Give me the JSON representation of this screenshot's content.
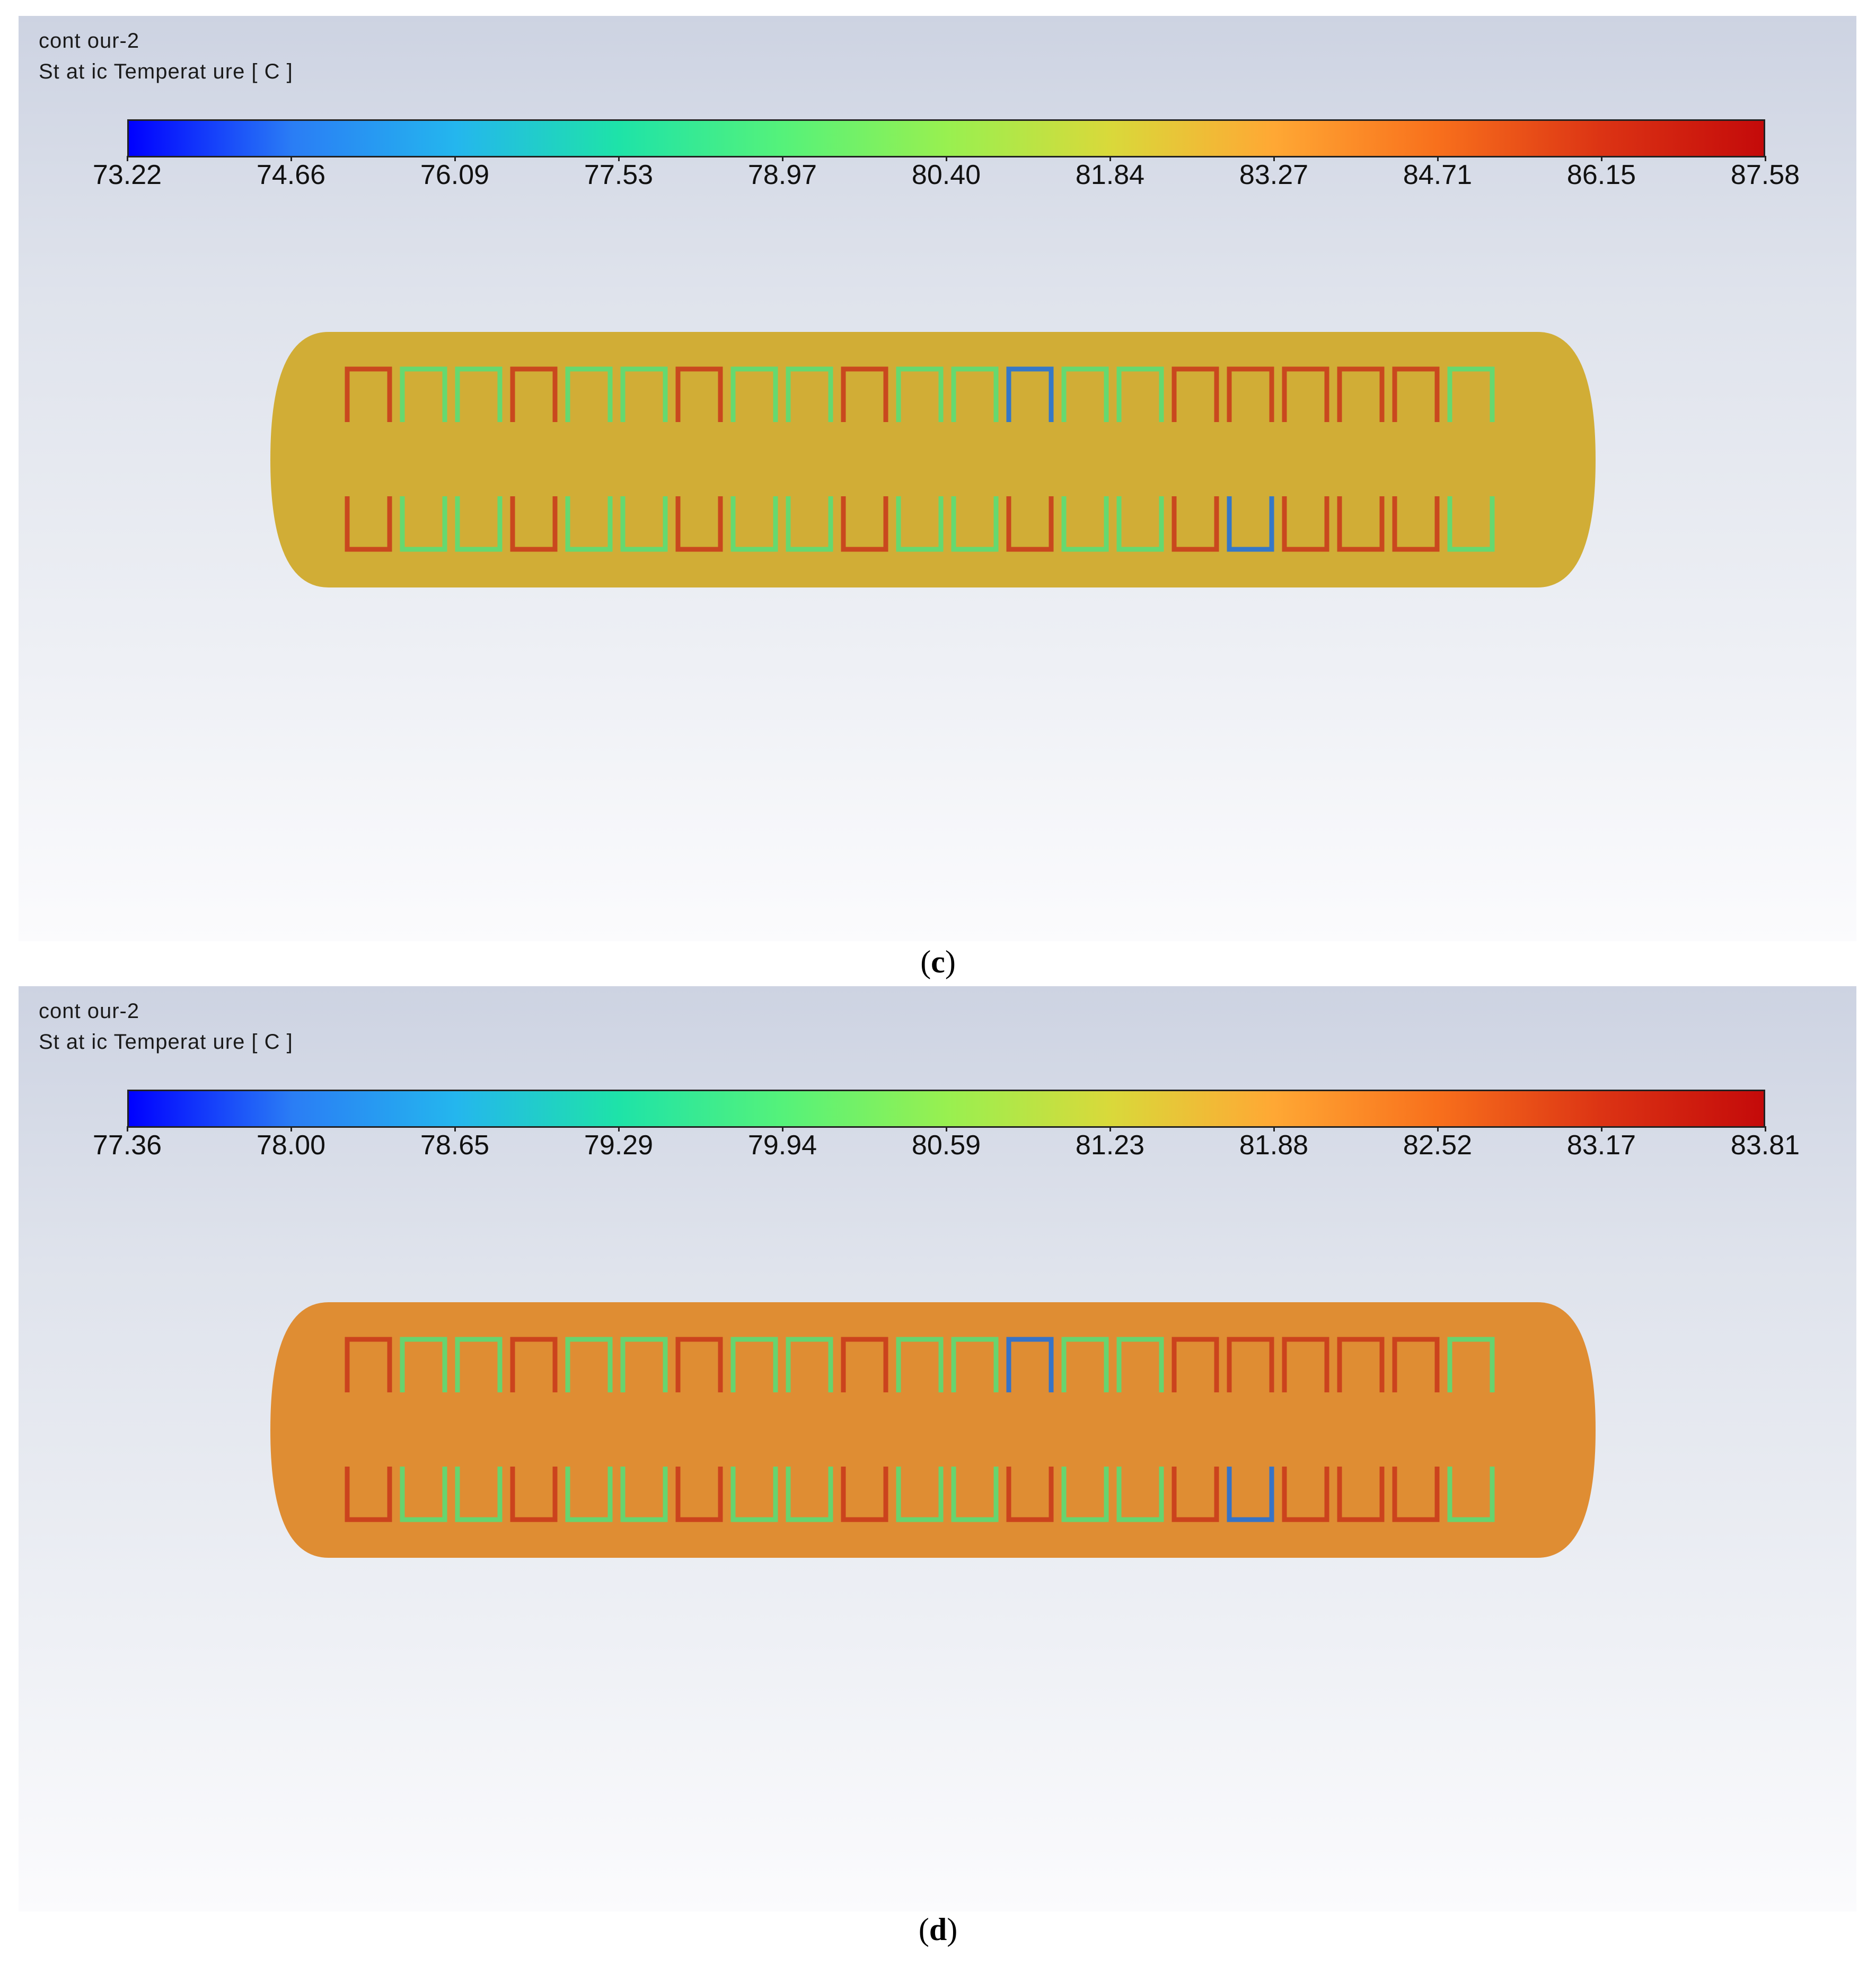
{
  "panels": [
    {
      "id": "c",
      "title_line1": "cont our-2",
      "title_line2": "St at ic Temperat ure [ C ]",
      "colorbar_ticks": [
        "73.22",
        "74.66",
        "76.09",
        "77.53",
        "78.97",
        "80.40",
        "81.84",
        "83.27",
        "84.71",
        "86.15",
        "87.58"
      ],
      "body_color": "#d1ad36",
      "caption_open": "(",
      "caption_letter": "c",
      "caption_close": ")"
    },
    {
      "id": "d",
      "title_line1": "cont our-2",
      "title_line2": "St at ic Temperat ure [ C ]",
      "colorbar_ticks": [
        "77.36",
        "78.00",
        "78.65",
        "79.29",
        "79.94",
        "80.59",
        "81.23",
        "81.88",
        "82.52",
        "83.17",
        "83.81"
      ],
      "body_color": "#df8d33",
      "caption_open": "(",
      "caption_letter": "d",
      "caption_close": ")"
    }
  ],
  "colors": {
    "colormap": [
      "#0000ff",
      "#2a7df5",
      "#24b6ee",
      "#1ee3a8",
      "#55f27a",
      "#98f050",
      "#d9d93a",
      "#ffa834",
      "#f8701c",
      "#dc3414",
      "#c40a0a"
    ],
    "panel_background_top": "#cdd3e2",
    "panel_background_bottom": "#fbfbfd",
    "channel_cool": "#52e07a",
    "channel_cold": "#1a6fe0",
    "channel_hot": "#c8361a"
  }
}
